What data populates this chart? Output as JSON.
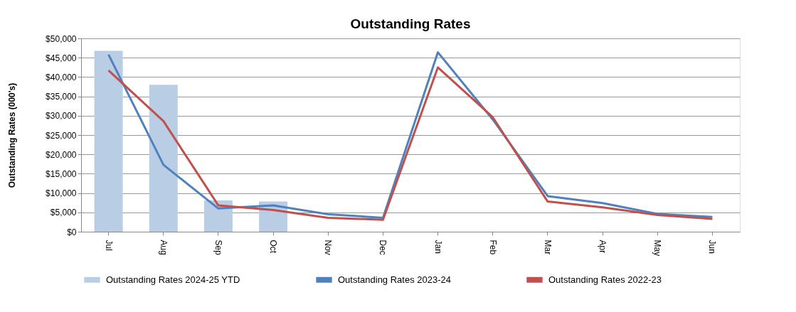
{
  "chart_data": {
    "type": "bar",
    "title": "Outstanding Rates",
    "ylabel": "Outstanding Rates (000's)",
    "categories": [
      "Jul",
      "Aug",
      "Sep",
      "Oct",
      "Nov",
      "Dec",
      "Jan",
      "Feb",
      "Mar",
      "Apr",
      "May",
      "Jun"
    ],
    "series": [
      {
        "name": "Outstanding Rates 2024-25 YTD",
        "color": "#b9cde5",
        "values": [
          46800,
          38000,
          8100,
          7800,
          null,
          null,
          null,
          null,
          null,
          null,
          null,
          null
        ]
      },
      {
        "name": "Outstanding Rates 2023-24",
        "type": "line",
        "color": "#4f81bd",
        "values": [
          45800,
          17300,
          6000,
          6800,
          4500,
          3600,
          46400,
          29000,
          9200,
          7400,
          4600,
          3800
        ]
      },
      {
        "name": "Outstanding Rates 2022-23",
        "type": "line",
        "color": "#c0504d",
        "values": [
          41700,
          28600,
          6800,
          5600,
          3600,
          3100,
          42500,
          29600,
          7800,
          6300,
          4300,
          3300
        ]
      }
    ],
    "ylim": [
      0,
      50000
    ],
    "yticks": [
      {
        "value": 0,
        "label": "$0"
      },
      {
        "value": 5000,
        "label": "$5,000"
      },
      {
        "value": 10000,
        "label": "$10,000"
      },
      {
        "value": 15000,
        "label": "$15,000"
      },
      {
        "value": 20000,
        "label": "$20,000"
      },
      {
        "value": 25000,
        "label": "$25,000"
      },
      {
        "value": 30000,
        "label": "$30,000"
      },
      {
        "value": 35000,
        "label": "$35,000"
      },
      {
        "value": 40000,
        "label": "$40,000"
      },
      {
        "value": 45000,
        "label": "$45,000"
      },
      {
        "value": 50000,
        "label": "$50,000"
      }
    ],
    "grid": "y",
    "legend": "bottom",
    "marker": "none",
    "line_style": "solid"
  }
}
